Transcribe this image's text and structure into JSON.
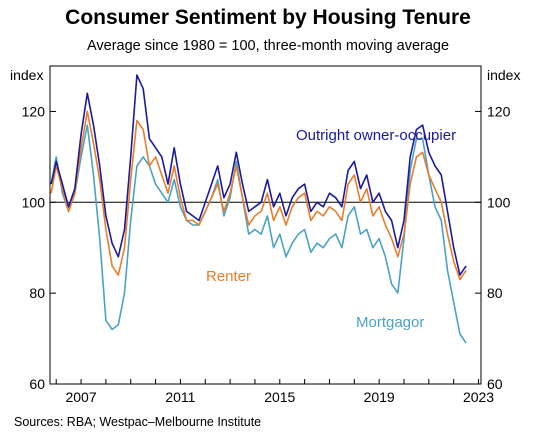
{
  "chart_data": {
    "type": "line",
    "title": "Consumer Sentiment by Housing Tenure",
    "subtitle": "Average since 1980 = 100, three-month moving average",
    "ylabel": "index",
    "ylim": [
      60,
      130
    ],
    "yticks": [
      60,
      80,
      100,
      120
    ],
    "xlim": [
      2005.75,
      2023.1
    ],
    "xticks": [
      2007,
      2011,
      2015,
      2019,
      2023
    ],
    "reference_line": 100,
    "grid": false,
    "source": "Sources: RBA; Westpac–Melbourne Institute",
    "series": [
      {
        "name": "Outright owner-occupier",
        "color": "#1a1a9e",
        "x": [
          2005.8,
          2006.0,
          2006.25,
          2006.5,
          2006.75,
          2007.0,
          2007.25,
          2007.5,
          2007.75,
          2008.0,
          2008.25,
          2008.5,
          2008.75,
          2009.0,
          2009.25,
          2009.5,
          2009.75,
          2010.0,
          2010.25,
          2010.5,
          2010.75,
          2011.0,
          2011.25,
          2011.5,
          2011.75,
          2012.0,
          2012.25,
          2012.5,
          2012.75,
          2013.0,
          2013.25,
          2013.5,
          2013.75,
          2014.0,
          2014.25,
          2014.5,
          2014.75,
          2015.0,
          2015.25,
          2015.5,
          2015.75,
          2016.0,
          2016.25,
          2016.5,
          2016.75,
          2017.0,
          2017.25,
          2017.5,
          2017.75,
          2018.0,
          2018.25,
          2018.5,
          2018.75,
          2019.0,
          2019.25,
          2019.5,
          2019.75,
          2020.0,
          2020.25,
          2020.5,
          2020.75,
          2021.0,
          2021.25,
          2021.5,
          2021.75,
          2022.0,
          2022.25,
          2022.5
        ],
        "values": [
          104,
          109,
          104,
          99,
          103,
          115,
          124,
          117,
          108,
          97,
          91,
          88,
          94,
          110,
          128,
          125,
          114,
          112,
          110,
          104,
          112,
          104,
          98,
          97,
          96,
          100,
          104,
          108,
          101,
          104,
          111,
          104,
          98,
          99,
          100,
          105,
          99,
          102,
          97,
          101,
          103,
          104,
          98,
          100,
          99,
          102,
          101,
          99,
          107,
          109,
          103,
          106,
          100,
          102,
          98,
          96,
          90,
          96,
          110,
          116,
          117,
          111,
          108,
          106,
          98,
          90,
          84,
          86
        ]
      },
      {
        "name": "Renter",
        "color": "#e87d2a",
        "x": [
          2005.8,
          2006.0,
          2006.25,
          2006.5,
          2006.75,
          2007.0,
          2007.25,
          2007.5,
          2007.75,
          2008.0,
          2008.25,
          2008.5,
          2008.75,
          2009.0,
          2009.25,
          2009.5,
          2009.75,
          2010.0,
          2010.25,
          2010.5,
          2010.75,
          2011.0,
          2011.25,
          2011.5,
          2011.75,
          2012.0,
          2012.25,
          2012.5,
          2012.75,
          2013.0,
          2013.25,
          2013.5,
          2013.75,
          2014.0,
          2014.25,
          2014.5,
          2014.75,
          2015.0,
          2015.25,
          2015.5,
          2015.75,
          2016.0,
          2016.25,
          2016.5,
          2016.75,
          2017.0,
          2017.25,
          2017.5,
          2017.75,
          2018.0,
          2018.25,
          2018.5,
          2018.75,
          2019.0,
          2019.25,
          2019.5,
          2019.75,
          2020.0,
          2020.25,
          2020.5,
          2020.75,
          2021.0,
          2021.25,
          2021.5,
          2021.75,
          2022.0,
          2022.25,
          2022.5
        ],
        "values": [
          102,
          108,
          103,
          98,
          102,
          112,
          120,
          113,
          105,
          94,
          86,
          84,
          90,
          105,
          118,
          116,
          108,
          110,
          106,
          102,
          108,
          101,
          96,
          96,
          95,
          98,
          101,
          104,
          98,
          102,
          108,
          101,
          95,
          97,
          98,
          102,
          96,
          99,
          95,
          99,
          101,
          102,
          96,
          98,
          97,
          99,
          98,
          96,
          104,
          106,
          100,
          103,
          97,
          99,
          95,
          92,
          88,
          93,
          104,
          110,
          111,
          106,
          103,
          100,
          93,
          87,
          83,
          85
        ]
      },
      {
        "name": "Mortgagor",
        "color": "#4aa3c4",
        "x": [
          2005.8,
          2006.0,
          2006.25,
          2006.5,
          2006.75,
          2007.0,
          2007.25,
          2007.5,
          2007.75,
          2008.0,
          2008.25,
          2008.5,
          2008.75,
          2009.0,
          2009.25,
          2009.5,
          2009.75,
          2010.0,
          2010.25,
          2010.5,
          2010.75,
          2011.0,
          2011.25,
          2011.5,
          2011.75,
          2012.0,
          2012.25,
          2012.5,
          2012.75,
          2013.0,
          2013.25,
          2013.5,
          2013.75,
          2014.0,
          2014.25,
          2014.5,
          2014.75,
          2015.0,
          2015.25,
          2015.5,
          2015.75,
          2016.0,
          2016.25,
          2016.5,
          2016.75,
          2017.0,
          2017.25,
          2017.5,
          2017.75,
          2018.0,
          2018.25,
          2018.5,
          2018.75,
          2019.0,
          2019.25,
          2019.5,
          2019.75,
          2020.0,
          2020.25,
          2020.5,
          2020.75,
          2021.0,
          2021.25,
          2021.5,
          2021.75,
          2022.0,
          2022.25,
          2022.5
        ],
        "values": [
          104,
          110,
          102,
          98,
          102,
          110,
          117,
          106,
          92,
          74,
          72,
          73,
          80,
          96,
          108,
          110,
          108,
          104,
          102,
          100,
          105,
          99,
          96,
          95,
          95,
          98,
          101,
          105,
          97,
          101,
          109,
          101,
          93,
          94,
          93,
          97,
          90,
          93,
          88,
          91,
          93,
          94,
          89,
          91,
          90,
          92,
          93,
          90,
          97,
          99,
          93,
          94,
          90,
          92,
          88,
          82,
          80,
          92,
          107,
          114,
          114,
          106,
          99,
          96,
          85,
          78,
          71,
          69
        ]
      }
    ]
  },
  "labels": {
    "index_left": "index",
    "index_right": "index",
    "series_owner": "Outright owner-occupier",
    "series_renter": "Renter",
    "series_mortgagor": "Mortgagor"
  },
  "colors": {
    "owner": "#1a1a9e",
    "renter": "#e87d2a",
    "mortgagor": "#4aa3c4",
    "axis": "#000000",
    "reference": "#000000"
  }
}
